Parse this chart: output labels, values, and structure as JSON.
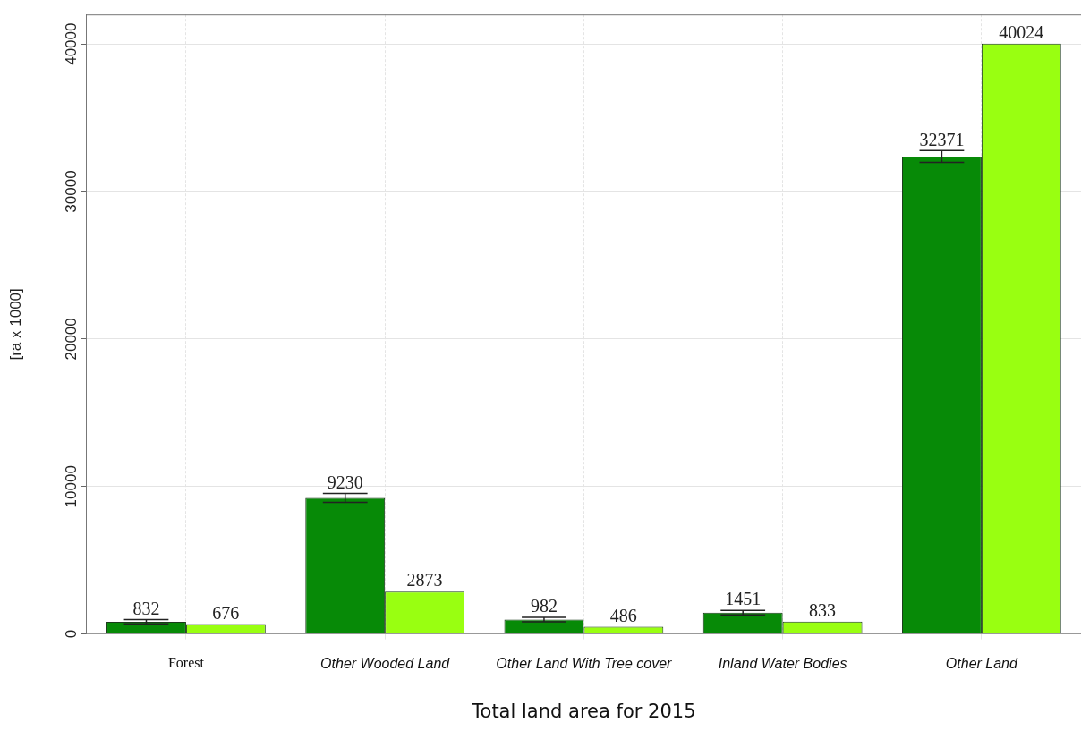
{
  "chart_data": {
    "type": "bar",
    "xlabel": "Total land area for 2015",
    "ylabel": "[ra x 1000]",
    "categories": [
      "Forest",
      "Other Wooded Land",
      "Other Land With Tree cover",
      "Inland Water Bodies",
      "Other Land"
    ],
    "series": [
      {
        "color": "#078a07",
        "values": [
          832,
          9230,
          982,
          1451,
          32371
        ],
        "errors": [
          150,
          300,
          150,
          150,
          400
        ]
      },
      {
        "color": "#99ff11",
        "values": [
          676,
          2873,
          486,
          833,
          40024
        ]
      }
    ],
    "ylim": [
      0,
      42000
    ],
    "yticks": [
      0,
      10000,
      20000,
      30000,
      40000
    ],
    "grid": true,
    "legend": false,
    "data_labels": true
  }
}
